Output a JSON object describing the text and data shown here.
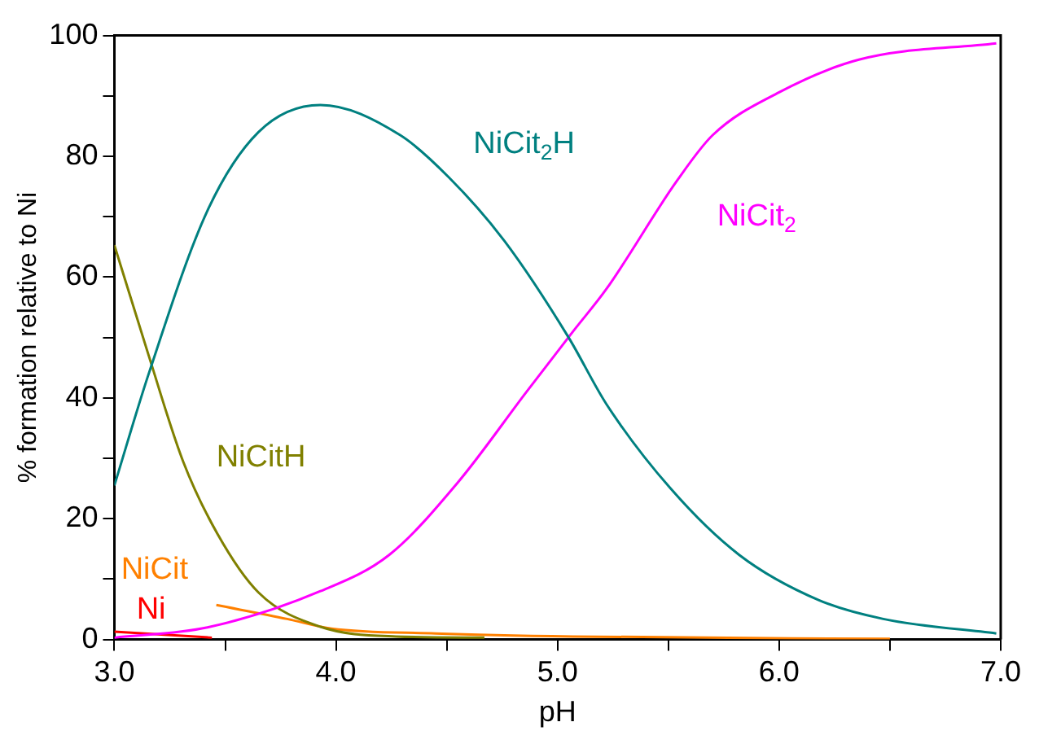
{
  "chart_data": {
    "type": "line",
    "xlabel": "pH",
    "ylabel": "% formation relative to Ni",
    "xlim": [
      3,
      7
    ],
    "ylim": [
      0,
      100
    ],
    "xticks": [
      {
        "value": 3,
        "label": "3.0"
      },
      {
        "value": 3.5,
        "label": null
      },
      {
        "value": 4,
        "label": "4.0"
      },
      {
        "value": 4.5,
        "label": null
      },
      {
        "value": 5,
        "label": "5.0"
      },
      {
        "value": 5.5,
        "label": null
      },
      {
        "value": 6,
        "label": "6.0"
      },
      {
        "value": 6.5,
        "label": null
      },
      {
        "value": 7,
        "label": "7.0"
      }
    ],
    "yticks": [
      0,
      {
        "value": 10,
        "label": null
      },
      20,
      {
        "value": 30,
        "label": null
      },
      40,
      {
        "value": 50,
        "label": null
      },
      60,
      {
        "value": 70,
        "label": null
      },
      80,
      {
        "value": 90,
        "label": null
      },
      100
    ],
    "grid": false,
    "legend": false,
    "marker": "none",
    "line_style": "solid",
    "series": [
      {
        "name": "NiCit$_{2}$H",
        "color": "#008080",
        "x": [
          3.0,
          3.155,
          3.42,
          3.65,
          3.93,
          4.29,
          4.51,
          4.76,
          5.05,
          5.22,
          5.51,
          5.82,
          6.18,
          6.47,
          6.98
        ],
        "values": [
          25.5,
          44,
          71,
          84,
          88.5,
          83.5,
          76.5,
          66,
          50,
          39,
          25,
          14,
          6.5,
          3.4,
          1.0
        ]
      },
      {
        "name": "NiCit$_{2}$",
        "color": "#ff00ff",
        "x": [
          3.0,
          3.42,
          3.93,
          4.24,
          4.55,
          4.86,
          5.07,
          5.22,
          5.54,
          5.7,
          6.0,
          6.36,
          6.98
        ],
        "values": [
          0.3,
          2,
          8,
          14,
          26,
          41,
          51,
          58,
          76,
          83.5,
          90.6,
          96,
          98.7
        ]
      },
      {
        "name": "NiCitH",
        "color": "#808000",
        "x": [
          3.0,
          3.155,
          3.31,
          3.465,
          3.65,
          3.93,
          4.27,
          4.67
        ],
        "values": [
          65.3,
          47,
          29.5,
          17.5,
          7.8,
          2.1,
          0.5,
          0.3
        ]
      },
      {
        "name": "NiCit",
        "color": "#ff8000",
        "x": [
          3.46,
          3.78,
          3.98,
          4.45,
          5.07,
          6.5
        ],
        "values": [
          5.7,
          3.4,
          1.8,
          1.0,
          0.5,
          0.1
        ]
      },
      {
        "name": "Ni",
        "color": "#ff0000",
        "x": [
          3.0,
          3.44
        ],
        "values": [
          1.3,
          0.3
        ]
      }
    ]
  }
}
